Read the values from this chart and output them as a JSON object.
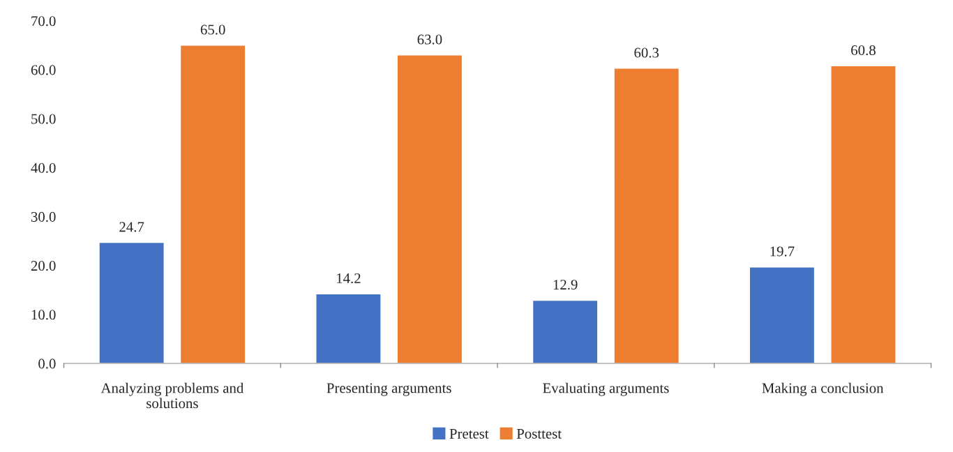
{
  "chart_data": {
    "type": "bar",
    "categories": [
      "Analyzing problems and\nsolutions",
      "Presenting arguments",
      "Evaluating arguments",
      "Making a conclusion"
    ],
    "series": [
      {
        "name": "Pretest",
        "color": "#4472c4",
        "values": [
          24.7,
          14.2,
          12.9,
          19.7
        ],
        "value_labels": [
          "24.7",
          "14.2",
          "12.9",
          "19.7"
        ]
      },
      {
        "name": "Posttest",
        "color": "#ed7d31",
        "values": [
          65.0,
          63.0,
          60.3,
          60.8
        ],
        "value_labels": [
          "65.0",
          "63.0",
          "60.3",
          "60.8"
        ]
      }
    ],
    "ylim": [
      0,
      70
    ],
    "yticks": [
      {
        "value": 0,
        "label": "0.0"
      },
      {
        "value": 10,
        "label": "10.0"
      },
      {
        "value": 20,
        "label": "20.0"
      },
      {
        "value": 30,
        "label": "30.0"
      },
      {
        "value": 40,
        "label": "40.0"
      },
      {
        "value": 50,
        "label": "50.0"
      },
      {
        "value": 60,
        "label": "60.0"
      },
      {
        "value": 70,
        "label": "70.0"
      }
    ],
    "grid": false,
    "legend": "bottom"
  }
}
